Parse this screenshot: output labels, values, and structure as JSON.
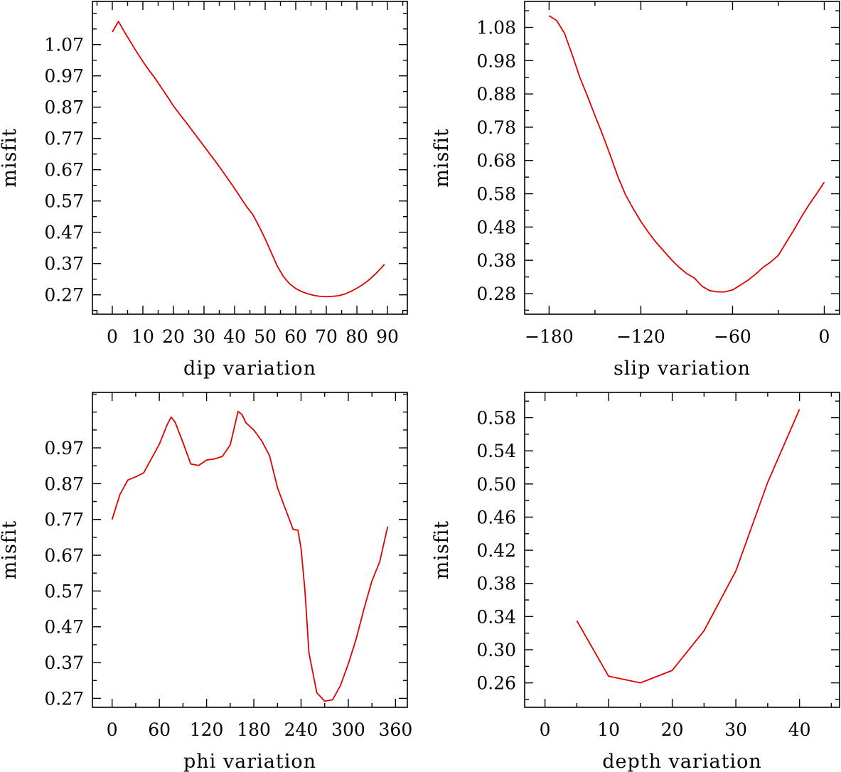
{
  "chart_data": [
    {
      "type": "line",
      "xlabel": "dip variation",
      "ylabel": "misfit",
      "xlim": [
        -6.5,
        96.5
      ],
      "ylim": [
        0.208,
        1.208
      ],
      "xticks": [
        0,
        10,
        20,
        30,
        40,
        50,
        60,
        70,
        80,
        90
      ],
      "yticks": [
        0.27,
        0.37,
        0.47,
        0.57,
        0.67,
        0.77,
        0.87,
        0.97,
        1.07
      ],
      "ytick_labels": [
        "0.27",
        "0.37",
        "0.47",
        "0.57",
        "0.67",
        "0.77",
        "0.87",
        "0.97",
        "1.07"
      ],
      "series": [
        {
          "name": "misfit",
          "x": [
            0,
            2,
            4,
            6,
            8,
            10,
            12,
            14,
            16,
            18,
            20,
            22,
            24,
            26,
            28,
            30,
            32,
            34,
            36,
            38,
            40,
            42,
            44,
            46,
            48,
            50,
            52,
            54,
            56,
            58,
            60,
            62,
            64,
            66,
            68,
            70,
            72,
            74,
            76,
            78,
            80,
            82,
            84,
            86,
            88,
            89
          ],
          "y": [
            1.11,
            1.144,
            1.11,
            1.078,
            1.046,
            1.016,
            0.988,
            0.962,
            0.933,
            0.904,
            0.874,
            0.848,
            0.823,
            0.797,
            0.771,
            0.745,
            0.719,
            0.693,
            0.666,
            0.638,
            0.61,
            0.58,
            0.551,
            0.526,
            0.489,
            0.449,
            0.405,
            0.361,
            0.328,
            0.305,
            0.29,
            0.28,
            0.273,
            0.268,
            0.265,
            0.264,
            0.265,
            0.267,
            0.272,
            0.281,
            0.291,
            0.303,
            0.318,
            0.336,
            0.356,
            0.367
          ]
        }
      ]
    },
    {
      "type": "line",
      "xlabel": "slip variation",
      "ylabel": "misfit",
      "xlim": [
        -196,
        10
      ],
      "ylim": [
        0.218,
        1.158
      ],
      "xticks": [
        -180,
        -120,
        -60,
        0
      ],
      "xtick_labels": [
        "−180",
        "−120",
        "−60",
        "0"
      ],
      "yticks": [
        0.28,
        0.38,
        0.48,
        0.58,
        0.68,
        0.78,
        0.88,
        0.98,
        1.08
      ],
      "ytick_labels": [
        "0.28",
        "0.38",
        "0.48",
        "0.58",
        "0.68",
        "0.78",
        "0.88",
        "0.98",
        "1.08"
      ],
      "series": [
        {
          "name": "misfit",
          "x": [
            -180,
            -175,
            -170,
            -165,
            -160,
            -155,
            -150,
            -145,
            -140,
            -135,
            -130,
            -125,
            -120,
            -115,
            -110,
            -105,
            -100,
            -95,
            -90,
            -85,
            -80,
            -75,
            -70,
            -65,
            -60,
            -55,
            -50,
            -45,
            -40,
            -35,
            -30,
            -25,
            -20,
            -15,
            -10,
            -5,
            0
          ],
          "y": [
            1.115,
            1.1,
            1.063,
            0.999,
            0.931,
            0.874,
            0.815,
            0.757,
            0.696,
            0.631,
            0.577,
            0.535,
            0.497,
            0.464,
            0.434,
            0.408,
            0.382,
            0.359,
            0.34,
            0.327,
            0.302,
            0.289,
            0.285,
            0.285,
            0.291,
            0.305,
            0.32,
            0.338,
            0.359,
            0.375,
            0.395,
            0.433,
            0.47,
            0.51,
            0.547,
            0.58,
            0.615
          ]
        }
      ]
    },
    {
      "type": "line",
      "xlabel": "phi variation",
      "ylabel": "misfit",
      "xlim": [
        -25,
        375
      ],
      "ylim": [
        0.245,
        1.125
      ],
      "xticks": [
        0,
        60,
        120,
        180,
        240,
        300,
        360
      ],
      "yticks": [
        0.27,
        0.37,
        0.47,
        0.57,
        0.67,
        0.77,
        0.87,
        0.97
      ],
      "ytick_labels": [
        "0.27",
        "0.37",
        "0.47",
        "0.57",
        "0.67",
        "0.77",
        "0.87",
        "0.97"
      ],
      "series": [
        {
          "name": "misfit",
          "x": [
            0,
            10,
            20,
            30,
            40,
            50,
            60,
            70,
            75,
            80,
            90,
            100,
            110,
            120,
            130,
            140,
            150,
            160,
            165,
            170,
            180,
            190,
            200,
            210,
            220,
            230,
            236,
            240,
            245,
            250,
            260,
            270,
            280,
            290,
            300,
            310,
            320,
            330,
            340,
            350
          ],
          "y": [
            0.77,
            0.84,
            0.88,
            0.889,
            0.9,
            0.94,
            0.98,
            1.035,
            1.056,
            1.042,
            0.985,
            0.925,
            0.921,
            0.936,
            0.939,
            0.946,
            0.978,
            1.072,
            1.063,
            1.04,
            1.02,
            0.99,
            0.948,
            0.859,
            0.8,
            0.742,
            0.74,
            0.689,
            0.57,
            0.397,
            0.286,
            0.262,
            0.266,
            0.306,
            0.366,
            0.436,
            0.521,
            0.598,
            0.652,
            0.75
          ]
        }
      ]
    },
    {
      "type": "line",
      "xlabel": "depth variation",
      "ylabel": "misfit",
      "xlim": [
        -3.2,
        46.3
      ],
      "ylim": [
        0.2305,
        0.6105
      ],
      "xticks": [
        0,
        10,
        20,
        30,
        40
      ],
      "yticks": [
        0.26,
        0.3,
        0.34,
        0.38,
        0.42,
        0.46,
        0.5,
        0.54,
        0.58
      ],
      "ytick_labels": [
        "0.26",
        "0.30",
        "0.34",
        "0.38",
        "0.42",
        "0.46",
        "0.50",
        "0.54",
        "0.58"
      ],
      "series": [
        {
          "name": "misfit",
          "x": [
            5,
            10,
            15,
            20,
            25,
            30,
            35,
            40
          ],
          "y": [
            0.335,
            0.268,
            0.26,
            0.275,
            0.323,
            0.395,
            0.502,
            0.59
          ]
        }
      ]
    }
  ]
}
